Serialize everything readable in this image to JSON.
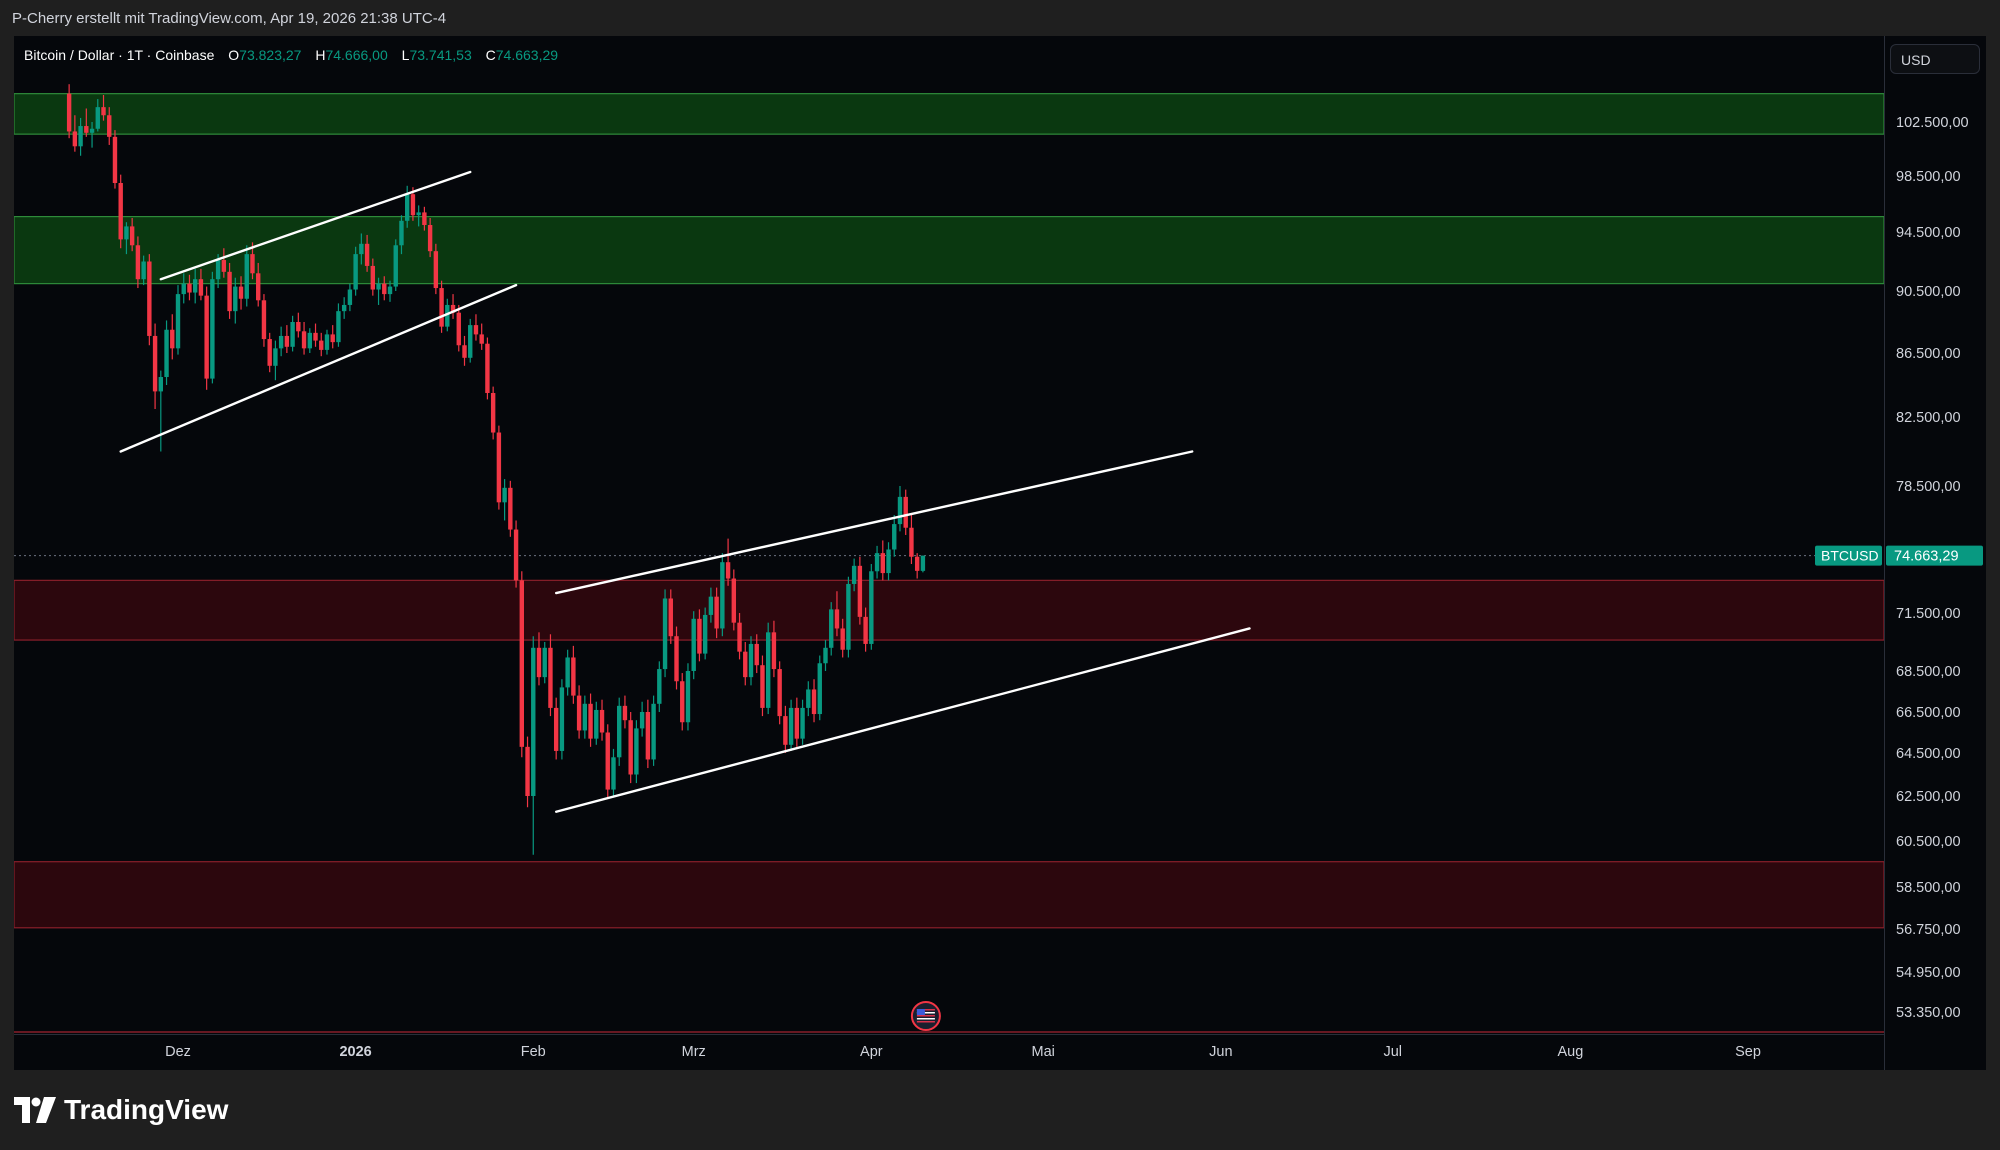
{
  "header": {
    "text": "P-Cherry erstellt mit TradingView.com, Apr 19, 2026 21:38 UTC-4"
  },
  "legend": {
    "symbol": "Bitcoin / Dollar · 1T · Coinbase",
    "open_label": "O",
    "open": "73.823,27",
    "high_label": "H",
    "high": "74.666,00",
    "low_label": "L",
    "low": "73.741,53",
    "close_label": "C",
    "close": "74.663,29"
  },
  "currency": "USD",
  "brand": {
    "name": "TradingView",
    "logo_icon": "tradingview-logo-icon"
  },
  "colors": {
    "up": "#089981",
    "down": "#f23645",
    "support_zone": "#2c070d",
    "resistance_zone": "#0a3810",
    "background": "#05070b"
  },
  "chart_data": {
    "type": "candlestick",
    "symbol": "BTCUSD",
    "last_price": 74663.29,
    "last_price_label": "74.663,29",
    "y_ticks": [
      {
        "v": 102500,
        "label": "102.500,00"
      },
      {
        "v": 98500,
        "label": "98.500,00"
      },
      {
        "v": 94500,
        "label": "94.500,00"
      },
      {
        "v": 90500,
        "label": "90.500,00"
      },
      {
        "v": 86500,
        "label": "86.500,00"
      },
      {
        "v": 82500,
        "label": "82.500,00"
      },
      {
        "v": 78500,
        "label": "78.500,00"
      },
      {
        "v": 71500,
        "label": "71.500,00"
      },
      {
        "v": 68500,
        "label": "68.500,00"
      },
      {
        "v": 66500,
        "label": "66.500,00"
      },
      {
        "v": 64500,
        "label": "64.500,00"
      },
      {
        "v": 62500,
        "label": "62.500,00"
      },
      {
        "v": 60500,
        "label": "60.500,00"
      },
      {
        "v": 58500,
        "label": "58.500,00"
      },
      {
        "v": 56750,
        "label": "56.750,00"
      },
      {
        "v": 54950,
        "label": "54.950,00"
      },
      {
        "v": 53350,
        "label": "53.350,00"
      }
    ],
    "x_ticks": [
      {
        "date": "2025-12-01",
        "label": "Dez"
      },
      {
        "date": "2026-01-01",
        "label": "2026"
      },
      {
        "date": "2026-02-01",
        "label": "Feb"
      },
      {
        "date": "2026-03-01",
        "label": "Mrz"
      },
      {
        "date": "2026-04-01",
        "label": "Apr"
      },
      {
        "date": "2026-05-01",
        "label": "Mai"
      },
      {
        "date": "2026-06-01",
        "label": "Jun"
      },
      {
        "date": "2026-07-01",
        "label": "Jul"
      },
      {
        "date": "2026-08-01",
        "label": "Aug"
      },
      {
        "date": "2026-09-01",
        "label": "Sep"
      }
    ],
    "zones": [
      {
        "kind": "resistance",
        "from": 101600,
        "to": 104600
      },
      {
        "kind": "resistance",
        "from": 91000,
        "to": 95600
      },
      {
        "kind": "support",
        "from": 70100,
        "to": 73300
      },
      {
        "kind": "support",
        "from": 56800,
        "to": 59600
      }
    ],
    "trendlines": [
      {
        "from": {
          "date": "2025-11-28",
          "price": 91300
        },
        "to": {
          "date": "2026-01-21",
          "price": 98800
        }
      },
      {
        "from": {
          "date": "2025-11-21",
          "price": 80500
        },
        "to": {
          "date": "2026-01-29",
          "price": 90900
        }
      },
      {
        "from": {
          "date": "2026-02-05",
          "price": 72600
        },
        "to": {
          "date": "2026-05-27",
          "price": 80500
        }
      },
      {
        "from": {
          "date": "2026-02-05",
          "price": 61800
        },
        "to": {
          "date": "2026-06-06",
          "price": 70700
        }
      }
    ],
    "candles": [
      [
        "2025-11-12",
        104600,
        105300,
        101300,
        101800
      ],
      [
        "2025-11-13",
        101800,
        103000,
        100300,
        100700
      ],
      [
        "2025-11-14",
        100700,
        102800,
        100000,
        102200
      ],
      [
        "2025-11-15",
        102200,
        103500,
        101400,
        101700
      ],
      [
        "2025-11-16",
        101700,
        102500,
        100600,
        102000
      ],
      [
        "2025-11-17",
        102000,
        104200,
        101800,
        103600
      ],
      [
        "2025-11-18",
        103600,
        104500,
        102600,
        103000
      ],
      [
        "2025-11-19",
        103000,
        103600,
        100800,
        101400
      ],
      [
        "2025-11-20",
        101400,
        101900,
        97600,
        98000
      ],
      [
        "2025-11-21",
        98000,
        98600,
        93400,
        94000
      ],
      [
        "2025-11-22",
        94000,
        95200,
        93000,
        94900
      ],
      [
        "2025-11-23",
        94900,
        95500,
        93200,
        93600
      ],
      [
        "2025-11-24",
        93600,
        94200,
        90700,
        91300
      ],
      [
        "2025-11-25",
        91300,
        92900,
        90900,
        92500
      ],
      [
        "2025-11-26",
        92500,
        93000,
        87000,
        87600
      ],
      [
        "2025-11-27",
        87600,
        88400,
        83000,
        84100
      ],
      [
        "2025-11-28",
        84100,
        85400,
        80500,
        85000
      ],
      [
        "2025-11-29",
        85000,
        88600,
        84500,
        88000
      ],
      [
        "2025-11-30",
        88000,
        89000,
        86100,
        86800
      ],
      [
        "2025-12-01",
        86800,
        90900,
        86400,
        90300
      ],
      [
        "2025-12-02",
        90300,
        91700,
        89700,
        91000
      ],
      [
        "2025-12-03",
        91000,
        91600,
        89900,
        90400
      ],
      [
        "2025-12-04",
        90400,
        92000,
        89700,
        91300
      ],
      [
        "2025-12-05",
        91300,
        92000,
        89900,
        90200
      ],
      [
        "2025-12-06",
        90200,
        90800,
        84200,
        84900
      ],
      [
        "2025-12-07",
        84900,
        91800,
        84600,
        91300
      ],
      [
        "2025-12-08",
        91300,
        93000,
        90700,
        92600
      ],
      [
        "2025-12-09",
        92600,
        93400,
        91400,
        91800
      ],
      [
        "2025-12-10",
        91800,
        92400,
        88700,
        89200
      ],
      [
        "2025-12-11",
        89200,
        91400,
        88400,
        90800
      ],
      [
        "2025-12-12",
        90800,
        91500,
        89300,
        90000
      ],
      [
        "2025-12-13",
        90000,
        93600,
        89500,
        93000
      ],
      [
        "2025-12-14",
        93000,
        93800,
        91300,
        91700
      ],
      [
        "2025-12-15",
        91700,
        92400,
        89500,
        89900
      ],
      [
        "2025-12-16",
        89900,
        90300,
        86900,
        87400
      ],
      [
        "2025-12-17",
        87400,
        87800,
        85300,
        85700
      ],
      [
        "2025-12-18",
        85700,
        87300,
        84800,
        86800
      ],
      [
        "2025-12-19",
        86800,
        88200,
        86300,
        87600
      ],
      [
        "2025-12-20",
        87600,
        88300,
        86500,
        86900
      ],
      [
        "2025-12-21",
        86900,
        88900,
        86600,
        88500
      ],
      [
        "2025-12-22",
        88500,
        89100,
        87500,
        87900
      ],
      [
        "2025-12-23",
        87900,
        88500,
        86400,
        86800
      ],
      [
        "2025-12-24",
        86800,
        88100,
        86500,
        87800
      ],
      [
        "2025-12-25",
        87800,
        88400,
        86900,
        87300
      ],
      [
        "2025-12-26",
        87300,
        87800,
        86300,
        86700
      ],
      [
        "2025-12-27",
        86700,
        88000,
        86400,
        87700
      ],
      [
        "2025-12-28",
        87700,
        88300,
        86800,
        87200
      ],
      [
        "2025-12-29",
        87200,
        89700,
        86900,
        89200
      ],
      [
        "2025-12-30",
        89200,
        90100,
        88700,
        89600
      ],
      [
        "2025-12-31",
        89600,
        91000,
        89200,
        90600
      ],
      [
        "2026-01-01",
        90600,
        93500,
        90200,
        93000
      ],
      [
        "2026-01-02",
        93000,
        94400,
        92300,
        93700
      ],
      [
        "2026-01-03",
        93700,
        94300,
        91800,
        92200
      ],
      [
        "2026-01-04",
        92200,
        92700,
        90200,
        90600
      ],
      [
        "2026-01-05",
        90600,
        91400,
        89600,
        91000
      ],
      [
        "2026-01-06",
        91000,
        91500,
        89900,
        90300
      ],
      [
        "2026-01-07",
        90300,
        91200,
        89800,
        90800
      ],
      [
        "2026-01-08",
        90800,
        94000,
        90500,
        93600
      ],
      [
        "2026-01-09",
        93600,
        95700,
        93000,
        95300
      ],
      [
        "2026-01-10",
        95300,
        97800,
        94800,
        97200
      ],
      [
        "2026-01-11",
        97200,
        97700,
        95300,
        95700
      ],
      [
        "2026-01-12",
        95700,
        96400,
        94900,
        95900
      ],
      [
        "2026-01-13",
        95900,
        96300,
        94600,
        95000
      ],
      [
        "2026-01-14",
        95000,
        95500,
        92800,
        93200
      ],
      [
        "2026-01-15",
        93200,
        93700,
        90300,
        90700
      ],
      [
        "2026-01-16",
        90700,
        91200,
        87800,
        88200
      ],
      [
        "2026-01-17",
        88200,
        90000,
        87900,
        89600
      ],
      [
        "2026-01-18",
        89600,
        90300,
        88700,
        89100
      ],
      [
        "2026-01-19",
        89100,
        89600,
        86600,
        87000
      ],
      [
        "2026-01-20",
        87000,
        87600,
        85700,
        86200
      ],
      [
        "2026-01-21",
        86200,
        88700,
        85900,
        88300
      ],
      [
        "2026-01-22",
        88300,
        89000,
        87300,
        87700
      ],
      [
        "2026-01-23",
        87700,
        88400,
        86700,
        87100
      ],
      [
        "2026-01-24",
        87100,
        87500,
        83600,
        84000
      ],
      [
        "2026-01-25",
        84000,
        84400,
        81200,
        81600
      ],
      [
        "2026-01-26",
        81600,
        82000,
        77200,
        77600
      ],
      [
        "2026-01-27",
        77600,
        78900,
        76600,
        78400
      ],
      [
        "2026-01-28",
        78400,
        78800,
        75700,
        76100
      ],
      [
        "2026-01-29",
        76100,
        76600,
        72900,
        73300
      ],
      [
        "2026-01-30",
        73300,
        73800,
        64300,
        64800
      ],
      [
        "2026-01-31",
        64800,
        65300,
        62000,
        62500
      ],
      [
        "2026-02-01",
        62500,
        70300,
        59900,
        69700
      ],
      [
        "2026-02-02",
        69700,
        70500,
        67800,
        68200
      ],
      [
        "2026-02-03",
        68200,
        70000,
        67900,
        69700
      ],
      [
        "2026-02-04",
        69700,
        70400,
        66300,
        66700
      ],
      [
        "2026-02-05",
        66700,
        67200,
        64200,
        64600
      ],
      [
        "2026-02-06",
        64600,
        68100,
        64200,
        67700
      ],
      [
        "2026-02-07",
        67700,
        69600,
        67300,
        69200
      ],
      [
        "2026-02-08",
        69200,
        69800,
        66900,
        67300
      ],
      [
        "2026-02-09",
        67300,
        67800,
        65200,
        65600
      ],
      [
        "2026-02-10",
        65600,
        67300,
        65200,
        66900
      ],
      [
        "2026-02-11",
        66900,
        67400,
        64800,
        65200
      ],
      [
        "2026-02-12",
        65200,
        67000,
        64900,
        66600
      ],
      [
        "2026-02-13",
        66600,
        67100,
        65100,
        65500
      ],
      [
        "2026-02-14",
        65500,
        65900,
        62400,
        62800
      ],
      [
        "2026-02-15",
        62800,
        64700,
        62500,
        64300
      ],
      [
        "2026-02-16",
        64300,
        67200,
        63900,
        66800
      ],
      [
        "2026-02-17",
        66800,
        67300,
        65700,
        66100
      ],
      [
        "2026-02-18",
        66100,
        66500,
        63100,
        63500
      ],
      [
        "2026-02-19",
        63500,
        66100,
        63100,
        65700
      ],
      [
        "2026-02-20",
        65700,
        67000,
        65300,
        66500
      ],
      [
        "2026-02-21",
        66500,
        67100,
        63800,
        64200
      ],
      [
        "2026-02-22",
        64200,
        67300,
        63900,
        66900
      ],
      [
        "2026-02-23",
        66900,
        69000,
        66500,
        68600
      ],
      [
        "2026-02-24",
        68600,
        72800,
        68200,
        72300
      ],
      [
        "2026-02-25",
        72300,
        72800,
        69900,
        70300
      ],
      [
        "2026-02-26",
        70300,
        70800,
        67600,
        68000
      ],
      [
        "2026-02-27",
        68000,
        68400,
        65600,
        66000
      ],
      [
        "2026-02-28",
        66000,
        68900,
        65600,
        68500
      ],
      [
        "2026-03-01",
        68500,
        71600,
        68100,
        71200
      ],
      [
        "2026-03-02",
        71200,
        71700,
        69000,
        69400
      ],
      [
        "2026-03-03",
        69400,
        71800,
        69100,
        71400
      ],
      [
        "2026-03-04",
        71400,
        72900,
        71000,
        72400
      ],
      [
        "2026-03-05",
        72400,
        72900,
        70200,
        70700
      ],
      [
        "2026-03-06",
        70700,
        74800,
        70300,
        74300
      ],
      [
        "2026-03-07",
        74300,
        75600,
        73000,
        73400
      ],
      [
        "2026-03-08",
        73400,
        73900,
        70600,
        71000
      ],
      [
        "2026-03-09",
        71000,
        71500,
        69100,
        69500
      ],
      [
        "2026-03-10",
        69500,
        70000,
        67800,
        68200
      ],
      [
        "2026-03-11",
        68200,
        70300,
        67800,
        69900
      ],
      [
        "2026-03-12",
        69900,
        70400,
        68400,
        68800
      ],
      [
        "2026-03-13",
        68800,
        69300,
        66300,
        66700
      ],
      [
        "2026-03-14",
        66700,
        71000,
        66400,
        70500
      ],
      [
        "2026-03-15",
        70500,
        71100,
        68200,
        68600
      ],
      [
        "2026-03-16",
        68600,
        69000,
        65900,
        66300
      ],
      [
        "2026-03-17",
        66300,
        66800,
        64500,
        64900
      ],
      [
        "2026-03-18",
        64900,
        67100,
        64600,
        66700
      ],
      [
        "2026-03-19",
        66700,
        67200,
        64800,
        65200
      ],
      [
        "2026-03-20",
        65200,
        67100,
        64900,
        66700
      ],
      [
        "2026-03-21",
        66700,
        68000,
        66300,
        67600
      ],
      [
        "2026-03-22",
        67600,
        68100,
        66000,
        66400
      ],
      [
        "2026-03-23",
        66400,
        69300,
        66100,
        68900
      ],
      [
        "2026-03-24",
        68900,
        70100,
        68500,
        69700
      ],
      [
        "2026-03-25",
        69700,
        72100,
        69300,
        71700
      ],
      [
        "2026-03-26",
        71700,
        72700,
        70300,
        70700
      ],
      [
        "2026-03-27",
        70700,
        71200,
        69200,
        69600
      ],
      [
        "2026-03-28",
        69600,
        73500,
        69200,
        73100
      ],
      [
        "2026-03-29",
        73100,
        74500,
        72700,
        74100
      ],
      [
        "2026-03-30",
        74100,
        74600,
        70900,
        71300
      ],
      [
        "2026-03-31",
        71300,
        71800,
        69500,
        69900
      ],
      [
        "2026-04-01",
        69900,
        74200,
        69600,
        73800
      ],
      [
        "2026-04-02",
        73800,
        75200,
        73400,
        74800
      ],
      [
        "2026-04-03",
        74800,
        75500,
        73300,
        73700
      ],
      [
        "2026-04-04",
        73700,
        75400,
        73300,
        75000
      ],
      [
        "2026-04-05",
        75000,
        76900,
        74600,
        76400
      ],
      [
        "2026-04-06",
        76400,
        78500,
        76000,
        77900
      ],
      [
        "2026-04-07",
        77900,
        78300,
        75800,
        76200
      ],
      [
        "2026-04-08",
        76200,
        76900,
        74200,
        74600
      ],
      [
        "2026-04-09",
        74600,
        74800,
        73400,
        73823
      ],
      [
        "2026-04-10",
        73823,
        74666,
        73741,
        74663
      ]
    ]
  }
}
